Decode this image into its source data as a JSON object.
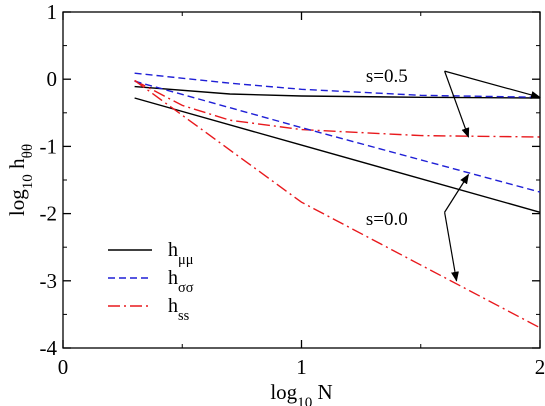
{
  "chart_data": {
    "type": "line",
    "xlabel": {
      "base": "log",
      "sub": "10",
      "rest": " N"
    },
    "ylabel": {
      "base": "log",
      "sub": "10",
      "rest": " h",
      "sub2": "θθ"
    },
    "xlim": [
      0,
      2
    ],
    "ylim": [
      -4,
      1
    ],
    "x_ticks": [
      0,
      1,
      2
    ],
    "x_tick_labels": [
      "0",
      "1",
      "2"
    ],
    "y_ticks": [
      1,
      0,
      -1,
      -2,
      -3,
      -4
    ],
    "y_tick_labels": [
      "1",
      "0",
      "-1",
      "-2",
      "-3",
      "-4"
    ],
    "grid": false,
    "legend_position": "lower-left",
    "legend": [
      {
        "base": "h",
        "sub": "μμ",
        "style": "solid",
        "color": "#000000"
      },
      {
        "base": "h",
        "sub": "σσ",
        "style": "dashed",
        "color": "#1f1fd6"
      },
      {
        "base": "h",
        "sub": "ss",
        "style": "dashdot",
        "color": "#e8191d"
      }
    ],
    "annotations": [
      {
        "text": "s=0.5",
        "arrows_to": [
          [
            2.0,
            -0.27
          ],
          [
            1.7,
            -0.86
          ]
        ]
      },
      {
        "text": "s=0.0",
        "arrows_to": [
          [
            1.7,
            -1.42
          ],
          [
            1.65,
            -3.0
          ]
        ]
      }
    ],
    "series": [
      {
        "group": "s=0.5",
        "style": "solid",
        "color": "#000000",
        "x": [
          0.3,
          0.7,
          1.0,
          1.5,
          2.0
        ],
        "y": [
          -0.11,
          -0.22,
          -0.25,
          -0.27,
          -0.28
        ]
      },
      {
        "group": "s=0.5",
        "style": "dashed",
        "color": "#1f1fd6",
        "x": [
          0.3,
          0.7,
          1.0,
          1.5,
          2.0
        ],
        "y": [
          0.09,
          -0.06,
          -0.15,
          -0.24,
          -0.27
        ]
      },
      {
        "group": "s=0.5",
        "style": "dashdot",
        "color": "#e8191d",
        "x": [
          0.3,
          0.5,
          0.7,
          1.0,
          1.5,
          2.0
        ],
        "y": [
          -0.02,
          -0.39,
          -0.61,
          -0.75,
          -0.84,
          -0.86
        ]
      },
      {
        "group": "s=0.0",
        "style": "solid",
        "color": "#000000",
        "x": [
          0.3,
          1.0,
          2.0
        ],
        "y": [
          -0.28,
          -0.98,
          -1.98
        ]
      },
      {
        "group": "s=0.0",
        "style": "dashed",
        "color": "#1f1fd6",
        "x": [
          0.3,
          1.0,
          2.0
        ],
        "y": [
          -0.03,
          -0.72,
          -1.68
        ]
      },
      {
        "group": "s=0.0",
        "style": "dashdot",
        "color": "#e8191d",
        "x": [
          0.3,
          1.0,
          2.0
        ],
        "y": [
          -0.02,
          -1.83,
          -3.7
        ]
      }
    ]
  }
}
